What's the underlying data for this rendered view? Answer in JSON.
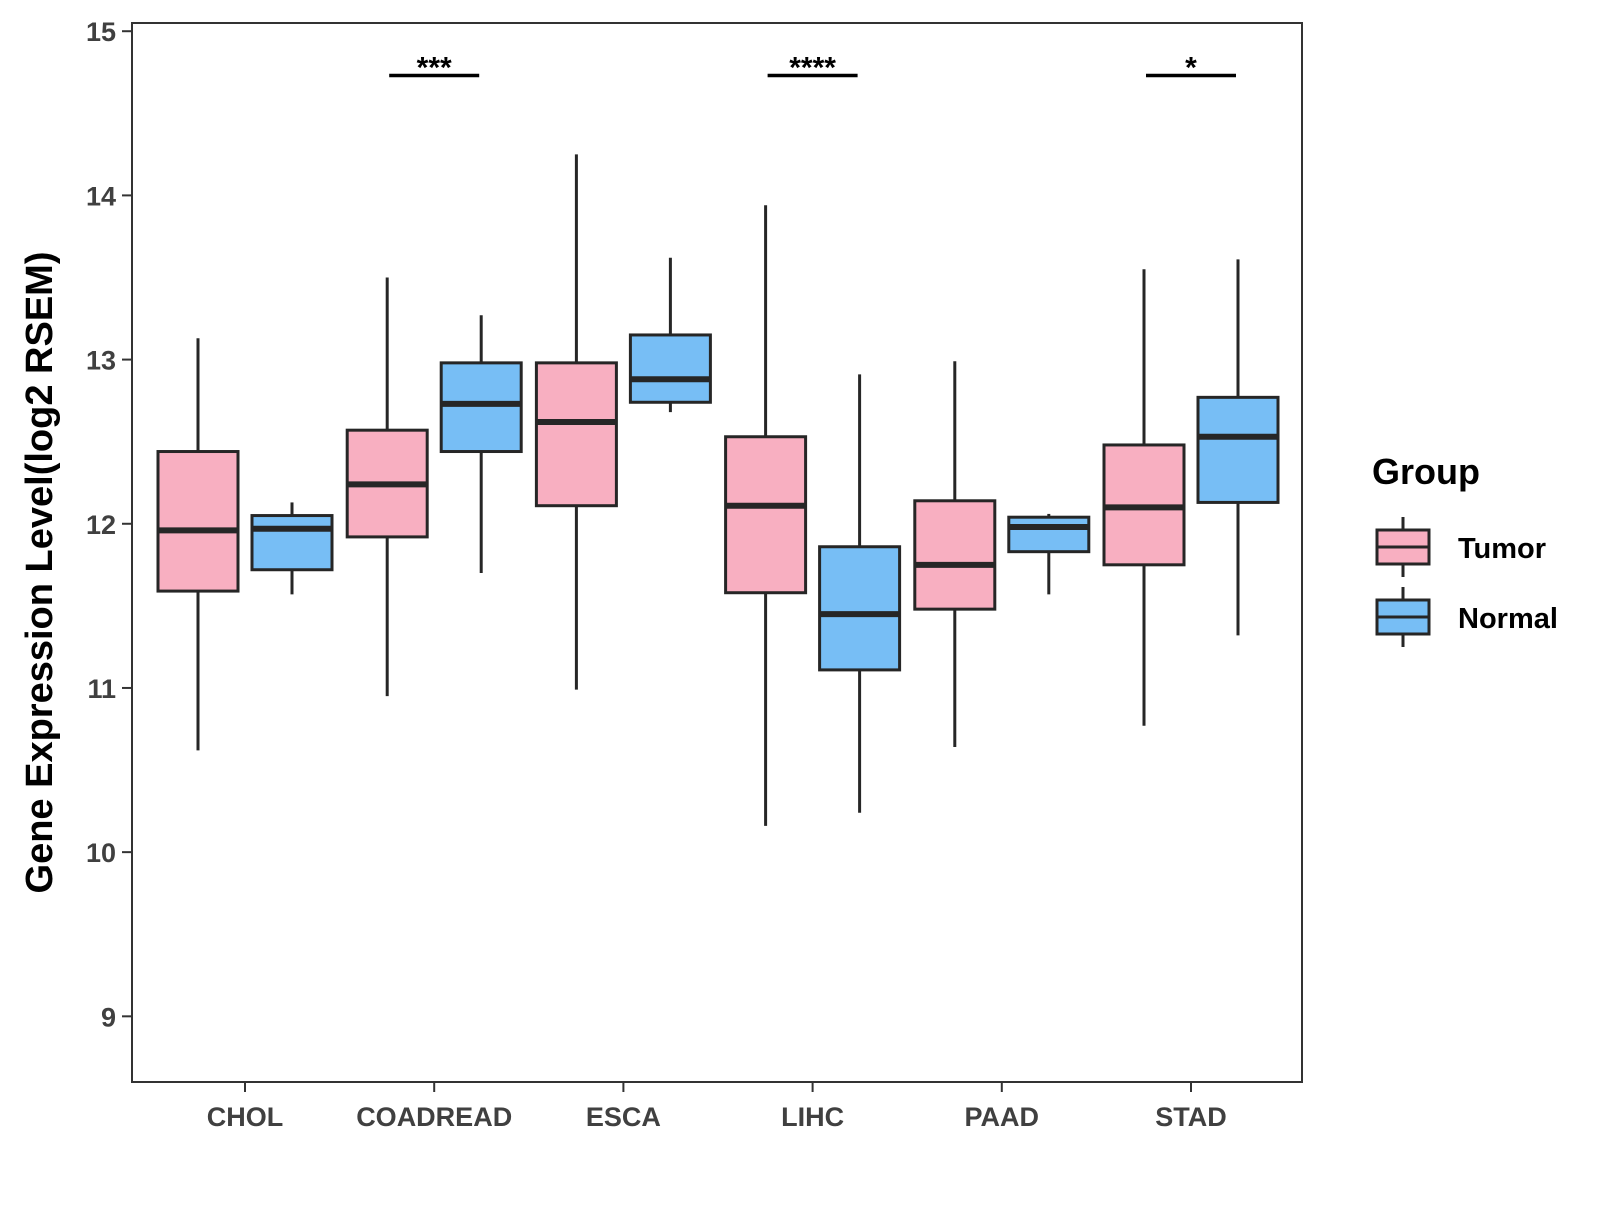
{
  "chart_data": {
    "type": "box",
    "ylabel": "Gene Expression Level(log2 RSEM)",
    "xlabel": "",
    "ylim": [
      8.6,
      15.05
    ],
    "yticks": [
      9,
      10,
      11,
      12,
      13,
      14,
      15
    ],
    "categories": [
      "CHOL",
      "COADREAD",
      "ESCA",
      "LIHC",
      "PAAD",
      "STAD"
    ],
    "legend": {
      "title": "Group",
      "position": "right",
      "entries": [
        {
          "name": "Tumor",
          "color": "#F8AFC1"
        },
        {
          "name": "Normal",
          "color": "#77BEF5"
        }
      ]
    },
    "series": [
      {
        "name": "Tumor",
        "color": "#F8AFC1",
        "boxes": [
          {
            "category": "CHOL",
            "min": 10.62,
            "q1": 11.59,
            "median": 11.96,
            "q3": 12.44,
            "max": 13.13
          },
          {
            "category": "COADREAD",
            "min": 10.95,
            "q1": 11.92,
            "median": 12.24,
            "q3": 12.57,
            "max": 13.5
          },
          {
            "category": "ESCA",
            "min": 10.99,
            "q1": 12.11,
            "median": 12.62,
            "q3": 12.98,
            "max": 14.25
          },
          {
            "category": "LIHC",
            "min": 10.16,
            "q1": 11.58,
            "median": 12.11,
            "q3": 12.53,
            "max": 13.94
          },
          {
            "category": "PAAD",
            "min": 10.64,
            "q1": 11.48,
            "median": 11.75,
            "q3": 12.14,
            "max": 12.99
          },
          {
            "category": "STAD",
            "min": 10.77,
            "q1": 11.75,
            "median": 12.1,
            "q3": 12.48,
            "max": 13.55
          }
        ]
      },
      {
        "name": "Normal",
        "color": "#77BEF5",
        "boxes": [
          {
            "category": "CHOL",
            "min": 11.57,
            "q1": 11.72,
            "median": 11.97,
            "q3": 12.05,
            "max": 12.13
          },
          {
            "category": "COADREAD",
            "min": 11.7,
            "q1": 12.44,
            "median": 12.73,
            "q3": 12.98,
            "max": 13.27
          },
          {
            "category": "ESCA",
            "min": 12.68,
            "q1": 12.74,
            "median": 12.88,
            "q3": 13.15,
            "max": 13.62
          },
          {
            "category": "LIHC",
            "min": 10.24,
            "q1": 11.11,
            "median": 11.45,
            "q3": 11.86,
            "max": 12.91
          },
          {
            "category": "PAAD",
            "min": 11.57,
            "q1": 11.83,
            "median": 11.98,
            "q3": 12.04,
            "max": 12.06
          },
          {
            "category": "STAD",
            "min": 11.32,
            "q1": 12.13,
            "median": 12.53,
            "q3": 12.77,
            "max": 13.61
          }
        ]
      }
    ],
    "significance": [
      {
        "category": "COADREAD",
        "label": "***",
        "y": 14.73
      },
      {
        "category": "LIHC",
        "label": "****",
        "y": 14.73
      },
      {
        "category": "STAD",
        "label": "*",
        "y": 14.73
      }
    ]
  }
}
